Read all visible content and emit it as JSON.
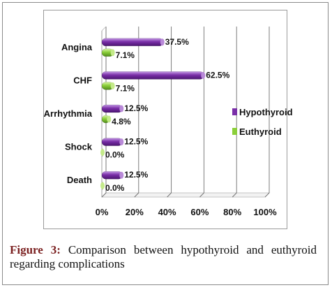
{
  "chart_data": {
    "type": "bar",
    "orientation": "horizontal",
    "categories": [
      "Angina",
      "CHF",
      "Arrhythmia",
      "Shock",
      "Death"
    ],
    "series": [
      {
        "name": "Hypothyroid",
        "values": [
          37.5,
          62.5,
          12.5,
          12.5,
          12.5
        ],
        "labels": [
          "37.5%",
          "62.5%",
          "12.5%",
          "12.5%",
          "12.5%"
        ],
        "color": "#7a2fa8"
      },
      {
        "name": "Euthyroid",
        "values": [
          7.1,
          7.1,
          4.8,
          0.0,
          0.0
        ],
        "labels": [
          "7.1%",
          "7.1%",
          "4.8%",
          "0.0%",
          "0.0%"
        ],
        "color": "#8bcf3a"
      }
    ],
    "x_ticks": [
      "0%",
      "20%",
      "40%",
      "60%",
      "80%",
      "100%"
    ],
    "xlim": [
      0,
      100
    ],
    "grid": true,
    "legend_position": "right"
  },
  "caption": {
    "label": "Figure 3:",
    "text": "Comparison between hypothyroid and euthyroid regarding complications"
  }
}
